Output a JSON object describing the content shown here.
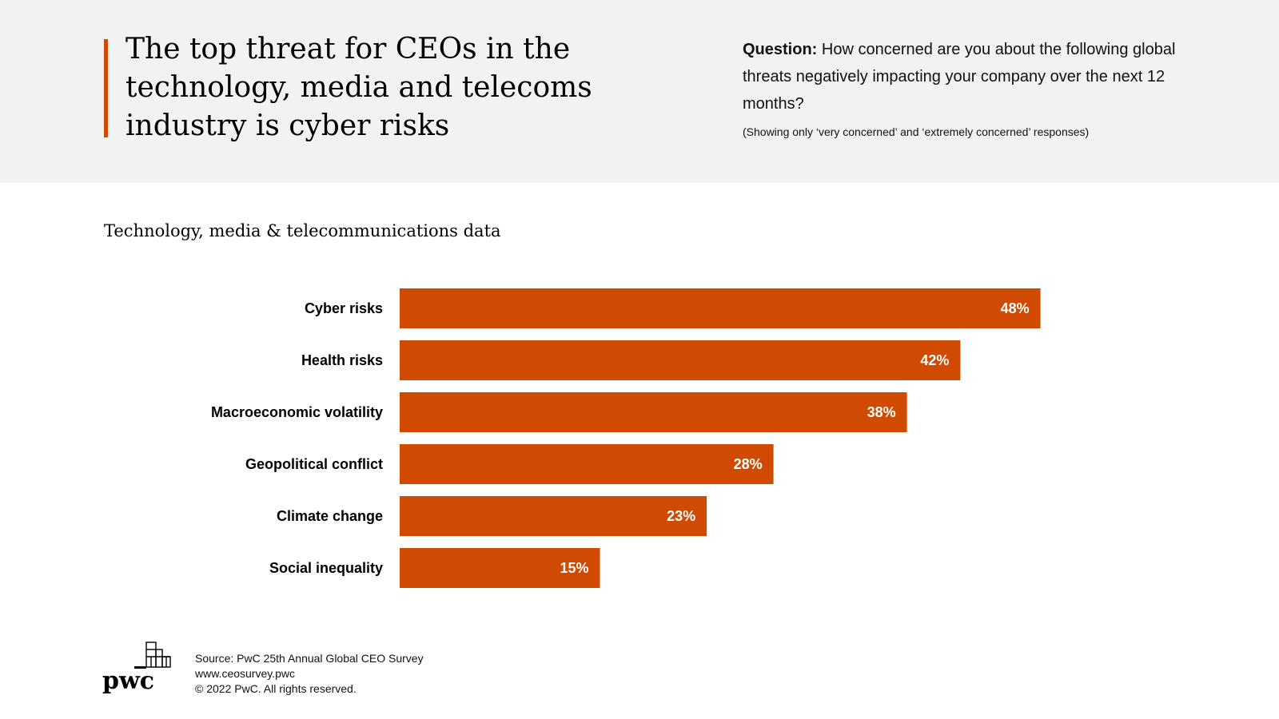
{
  "header": {
    "title": "The top threat for CEOs in the technology, media and telecoms industry is cyber risks",
    "question_label": "Question:",
    "question_text": "How concerned are you about the following global threats negatively impacting your company over the next 12 months?",
    "note": "(Showing only ‘very concerned’ and ‘extremely concerned’ responses)"
  },
  "colors": {
    "accent": "#d04a02",
    "header_bg": "#f2f2f2",
    "bar_label": "#ffffff"
  },
  "chart_data": {
    "type": "bar",
    "orientation": "horizontal",
    "title": "Technology, media & telecommunications data",
    "categories": [
      "Cyber risks",
      "Health risks",
      "Macroeconomic volatility",
      "Geopolitical conflict",
      "Climate change",
      "Social inequality"
    ],
    "values": [
      48,
      42,
      38,
      28,
      23,
      15
    ],
    "value_labels": [
      "48%",
      "42%",
      "38%",
      "28%",
      "23%",
      "15%"
    ],
    "unit": "%",
    "xlim": [
      0,
      50
    ],
    "grid": false,
    "legend": "none"
  },
  "footer": {
    "logo_icon": "pwc-logo-icon",
    "logo_text": "pwc",
    "source": "Source: PwC 25th Annual Global CEO Survey",
    "url": "www.ceosurvey.pwc",
    "copyright": "© 2022 PwC. All rights reserved."
  }
}
